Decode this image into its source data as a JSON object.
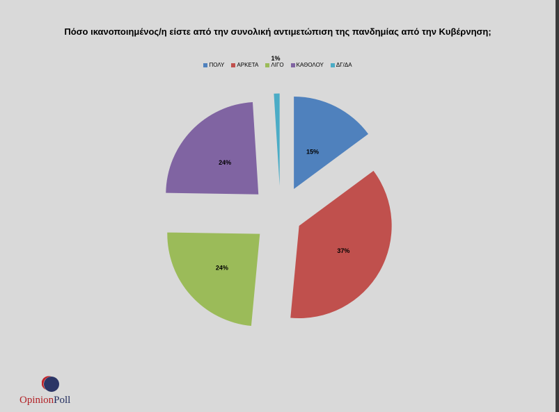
{
  "chart_data": {
    "type": "pie",
    "title": "Πόσο ικανοποιημένος/η είστε από την συνολική αντιμετώπιση της πανδημίας από την Κυβέρνηση;",
    "legend_position": "top",
    "series": [
      {
        "name": "ΠΟΛΥ",
        "value": 15,
        "label": "15%",
        "color": "#4f81bd"
      },
      {
        "name": "ΑΡΚΕΤΑ",
        "value": 37,
        "label": "37%",
        "color": "#c0504d"
      },
      {
        "name": "ΛΙΓΟ",
        "value": 24,
        "label": "24%",
        "color": "#9bbb59"
      },
      {
        "name": "ΚΑΘΟΛΟΥ",
        "value": 24,
        "label": "24%",
        "color": "#8064a2"
      },
      {
        "name": "ΔΓ/ΔΑ",
        "value": 1,
        "label": "1%",
        "color": "#4bacc6"
      }
    ]
  },
  "logo": {
    "part1": "Opinion",
    "part2": "Poll"
  }
}
